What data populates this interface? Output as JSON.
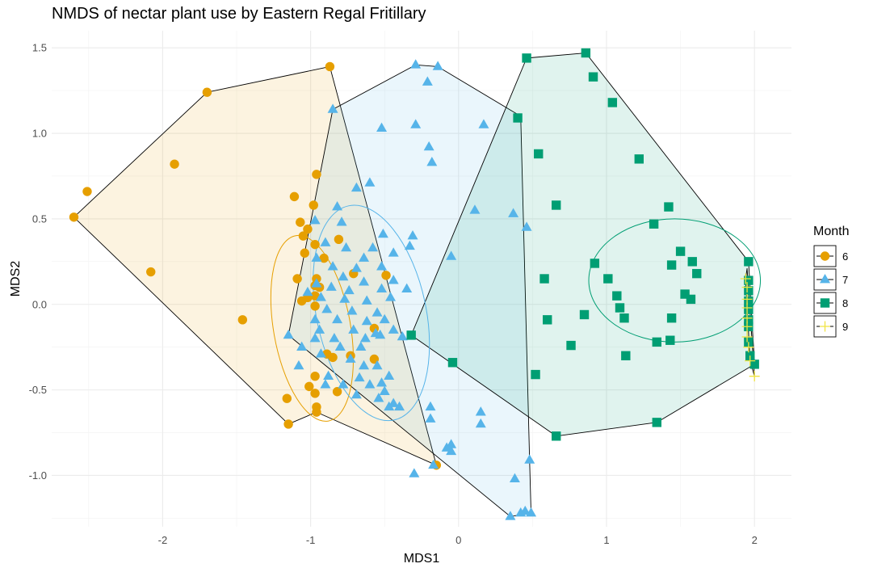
{
  "chart_data": {
    "type": "scatter",
    "title": "NMDS of nectar plant use by Eastern Regal Fritillary",
    "xlabel": "MDS1",
    "ylabel": "MDS2",
    "xlim": [
      -2.75,
      2.25
    ],
    "ylim": [
      -1.3,
      1.6
    ],
    "x_ticks": [
      -2,
      -1,
      0,
      1,
      2
    ],
    "x_tick_labels": [
      "-2",
      "-1",
      "0",
      "1",
      "2"
    ],
    "y_ticks": [
      -1.0,
      -0.5,
      0.0,
      0.5,
      1.0,
      1.5
    ],
    "y_tick_labels": [
      "-1.0",
      "-0.5",
      "0.0",
      "0.5",
      "1.0",
      "1.5"
    ],
    "grid": true,
    "legend": {
      "title": "Month",
      "position": "right"
    },
    "series": [
      {
        "name": "6",
        "marker": "circle",
        "color": "#E69F00",
        "points": [
          [
            -2.6,
            0.51
          ],
          [
            -2.51,
            0.66
          ],
          [
            -1.7,
            1.24
          ],
          [
            -0.87,
            1.39
          ],
          [
            -1.92,
            0.82
          ],
          [
            -2.08,
            0.19
          ],
          [
            -1.46,
            -0.09
          ],
          [
            -0.96,
            0.76
          ],
          [
            -1.11,
            0.63
          ],
          [
            -0.98,
            0.58
          ],
          [
            -1.07,
            0.48
          ],
          [
            -1.02,
            0.44
          ],
          [
            -1.05,
            0.4
          ],
          [
            -0.97,
            0.35
          ],
          [
            -1.04,
            0.3
          ],
          [
            -0.91,
            0.27
          ],
          [
            -0.81,
            0.38
          ],
          [
            -0.96,
            0.15
          ],
          [
            -1.09,
            0.15
          ],
          [
            -0.97,
            0.11
          ],
          [
            -0.71,
            0.18
          ],
          [
            -0.49,
            0.17
          ],
          [
            -0.97,
            0.05
          ],
          [
            -1.02,
            0.04
          ],
          [
            -1.06,
            0.02
          ],
          [
            -0.94,
            0.1
          ],
          [
            -0.97,
            -0.01
          ],
          [
            -0.89,
            -0.29
          ],
          [
            -0.85,
            -0.31
          ],
          [
            -0.73,
            -0.3
          ],
          [
            -0.57,
            -0.32
          ],
          [
            -0.57,
            -0.14
          ],
          [
            -0.97,
            -0.42
          ],
          [
            -1.01,
            -0.48
          ],
          [
            -0.97,
            -0.52
          ],
          [
            -1.16,
            -0.55
          ],
          [
            -0.96,
            -0.6
          ],
          [
            -0.82,
            -0.51
          ],
          [
            -0.96,
            -0.63
          ],
          [
            -1.15,
            -0.7
          ],
          [
            -0.15,
            -0.94
          ]
        ]
      },
      {
        "name": "7",
        "marker": "triangle",
        "color": "#56B4E9",
        "points": [
          [
            -0.29,
            1.4
          ],
          [
            -0.14,
            1.39
          ],
          [
            -0.21,
            1.3
          ],
          [
            -0.85,
            1.14
          ],
          [
            -0.52,
            1.03
          ],
          [
            -0.29,
            1.05
          ],
          [
            0.17,
            1.05
          ],
          [
            -0.2,
            0.92
          ],
          [
            -0.18,
            0.83
          ],
          [
            -0.6,
            0.71
          ],
          [
            -0.69,
            0.68
          ],
          [
            -0.82,
            0.57
          ],
          [
            0.11,
            0.55
          ],
          [
            0.37,
            0.53
          ],
          [
            -0.97,
            0.49
          ],
          [
            -0.79,
            0.48
          ],
          [
            0.46,
            0.45
          ],
          [
            -0.51,
            0.41
          ],
          [
            -0.31,
            0.4
          ],
          [
            -0.9,
            0.36
          ],
          [
            -0.76,
            0.33
          ],
          [
            -0.58,
            0.33
          ],
          [
            -0.33,
            0.34
          ],
          [
            -0.96,
            0.27
          ],
          [
            -0.64,
            0.27
          ],
          [
            -0.44,
            0.3
          ],
          [
            -0.05,
            0.28
          ],
          [
            -0.85,
            0.22
          ],
          [
            -0.69,
            0.21
          ],
          [
            -0.52,
            0.22
          ],
          [
            -0.78,
            0.16
          ],
          [
            -0.64,
            0.13
          ],
          [
            -0.44,
            0.14
          ],
          [
            -0.96,
            0.12
          ],
          [
            -0.86,
            0.1
          ],
          [
            -0.74,
            0.08
          ],
          [
            -0.52,
            0.09
          ],
          [
            -0.35,
            0.09
          ],
          [
            -1.02,
            0.07
          ],
          [
            -0.93,
            0.04
          ],
          [
            -0.77,
            0.03
          ],
          [
            -0.62,
            0.02
          ],
          [
            -0.46,
            0.04
          ],
          [
            -0.89,
            -0.03
          ],
          [
            -0.72,
            -0.04
          ],
          [
            -0.55,
            -0.05
          ],
          [
            -0.97,
            -0.09
          ],
          [
            -0.82,
            -0.09
          ],
          [
            -0.62,
            -0.1
          ],
          [
            -0.5,
            -0.09
          ],
          [
            -0.94,
            -0.15
          ],
          [
            -0.71,
            -0.15
          ],
          [
            -0.56,
            -0.17
          ],
          [
            -0.44,
            -0.15
          ],
          [
            -1.15,
            -0.18
          ],
          [
            -0.97,
            -0.2
          ],
          [
            -0.84,
            -0.2
          ],
          [
            -0.63,
            -0.2
          ],
          [
            -0.53,
            -0.18
          ],
          [
            -0.38,
            -0.19
          ],
          [
            -1.06,
            -0.25
          ],
          [
            -0.8,
            -0.25
          ],
          [
            -0.66,
            -0.25
          ],
          [
            -0.93,
            -0.29
          ],
          [
            -0.73,
            -0.32
          ],
          [
            -1.08,
            -0.36
          ],
          [
            -0.64,
            -0.36
          ],
          [
            -0.55,
            -0.36
          ],
          [
            -0.88,
            -0.42
          ],
          [
            -0.67,
            -0.43
          ],
          [
            -0.47,
            -0.42
          ],
          [
            -0.9,
            -0.47
          ],
          [
            -0.78,
            -0.47
          ],
          [
            -0.6,
            -0.47
          ],
          [
            -0.52,
            -0.46
          ],
          [
            -0.5,
            -0.51
          ],
          [
            -0.69,
            -0.53
          ],
          [
            -0.54,
            -0.55
          ],
          [
            -0.4,
            -0.6
          ],
          [
            -0.44,
            -0.58
          ],
          [
            -0.19,
            -0.6
          ],
          [
            -0.47,
            -0.6
          ],
          [
            -0.19,
            -0.67
          ],
          [
            0.15,
            -0.63
          ],
          [
            0.15,
            -0.7
          ],
          [
            -0.05,
            -0.82
          ],
          [
            -0.08,
            -0.84
          ],
          [
            -0.05,
            -0.86
          ],
          [
            -0.17,
            -0.94
          ],
          [
            -0.3,
            -0.99
          ],
          [
            0.38,
            -1.02
          ],
          [
            0.48,
            -0.91
          ],
          [
            0.45,
            -1.21
          ],
          [
            0.42,
            -1.22
          ],
          [
            0.35,
            -1.24
          ],
          [
            0.49,
            -1.22
          ]
        ]
      },
      {
        "name": "8",
        "marker": "square",
        "color": "#009E73",
        "points": [
          [
            0.46,
            1.44
          ],
          [
            0.86,
            1.47
          ],
          [
            0.91,
            1.33
          ],
          [
            1.04,
            1.18
          ],
          [
            0.4,
            1.09
          ],
          [
            0.54,
            0.88
          ],
          [
            1.22,
            0.85
          ],
          [
            0.66,
            0.58
          ],
          [
            1.42,
            0.57
          ],
          [
            1.32,
            0.47
          ],
          [
            0.92,
            0.24
          ],
          [
            1.5,
            0.31
          ],
          [
            1.44,
            0.23
          ],
          [
            1.58,
            0.25
          ],
          [
            1.61,
            0.18
          ],
          [
            1.01,
            0.15
          ],
          [
            0.58,
            0.15
          ],
          [
            1.07,
            0.05
          ],
          [
            1.53,
            0.06
          ],
          [
            1.57,
            0.03
          ],
          [
            1.09,
            -0.02
          ],
          [
            1.12,
            -0.08
          ],
          [
            0.85,
            -0.06
          ],
          [
            0.6,
            -0.09
          ],
          [
            1.44,
            -0.08
          ],
          [
            1.34,
            -0.22
          ],
          [
            1.43,
            -0.21
          ],
          [
            0.76,
            -0.24
          ],
          [
            1.13,
            -0.3
          ],
          [
            -0.32,
            -0.18
          ],
          [
            -0.04,
            -0.34
          ],
          [
            0.52,
            -0.41
          ],
          [
            0.66,
            -0.77
          ],
          [
            1.34,
            -0.69
          ],
          [
            1.96,
            0.25
          ],
          [
            1.96,
            0.14
          ],
          [
            1.96,
            0.08
          ],
          [
            1.96,
            0.02
          ],
          [
            1.96,
            -0.03
          ],
          [
            1.96,
            -0.09
          ],
          [
            1.96,
            -0.13
          ],
          [
            1.96,
            -0.22
          ],
          [
            1.97,
            -0.3
          ],
          [
            2.0,
            -0.35
          ]
        ]
      },
      {
        "name": "9",
        "marker": "cross",
        "color": "#F0E442",
        "points": [
          [
            1.94,
            0.15
          ],
          [
            1.95,
            0.1
          ],
          [
            1.95,
            0.03
          ],
          [
            1.95,
            -0.02
          ],
          [
            1.95,
            -0.08
          ],
          [
            1.95,
            -0.13
          ],
          [
            1.95,
            -0.19
          ],
          [
            1.96,
            -0.25
          ],
          [
            1.97,
            -0.33
          ],
          [
            2.0,
            -0.42
          ]
        ]
      }
    ],
    "hulls": [
      {
        "name": "6",
        "fill": "#E69F00",
        "points": [
          [
            -2.6,
            0.51
          ],
          [
            -1.7,
            1.24
          ],
          [
            -0.87,
            1.39
          ],
          [
            -0.15,
            -0.94
          ],
          [
            -0.96,
            -0.63
          ],
          [
            -1.15,
            -0.7
          ]
        ]
      },
      {
        "name": "7",
        "fill": "#56B4E9",
        "points": [
          [
            -0.85,
            1.14
          ],
          [
            -0.29,
            1.4
          ],
          [
            -0.14,
            1.39
          ],
          [
            0.42,
            1.1
          ],
          [
            0.48,
            -0.91
          ],
          [
            0.49,
            -1.22
          ],
          [
            0.35,
            -1.24
          ],
          [
            -1.15,
            -0.18
          ]
        ]
      },
      {
        "name": "8",
        "fill": "#009E73",
        "points": [
          [
            0.46,
            1.44
          ],
          [
            0.86,
            1.47
          ],
          [
            1.96,
            0.25
          ],
          [
            2.0,
            -0.35
          ],
          [
            1.34,
            -0.69
          ],
          [
            0.66,
            -0.77
          ],
          [
            -0.32,
            -0.18
          ]
        ]
      },
      {
        "name": "9",
        "fill": "#F0E442",
        "points": [
          [
            1.94,
            0.15
          ],
          [
            1.95,
            0.21
          ],
          [
            2.0,
            -0.42
          ],
          [
            1.97,
            -0.33
          ]
        ]
      }
    ],
    "ellipses": [
      {
        "name": "6",
        "color": "#E69F00",
        "cx": -0.99,
        "cy": -0.14,
        "rx": 0.26,
        "ry": 0.55,
        "angle": -10
      },
      {
        "name": "7",
        "color": "#56B4E9",
        "cx": -0.59,
        "cy": -0.05,
        "rx": 0.37,
        "ry": 0.64,
        "angle": -12
      },
      {
        "name": "8",
        "color": "#009E73",
        "cx": 1.46,
        "cy": 0.14,
        "rx": 0.58,
        "ry": 0.36,
        "angle": 0
      }
    ]
  }
}
